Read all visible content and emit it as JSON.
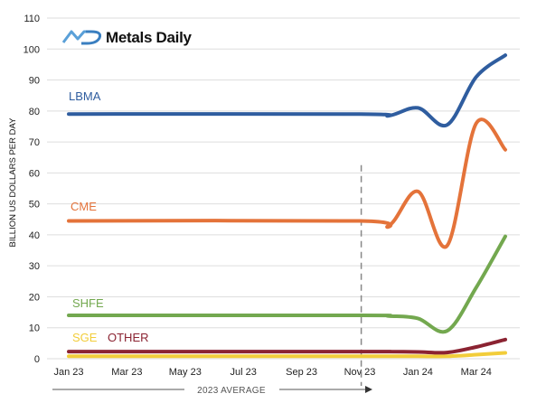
{
  "logo": {
    "mark": "MD",
    "name": "Metals Daily"
  },
  "chart_data": {
    "type": "line",
    "title": "",
    "xlabel": "",
    "ylabel": "BILLION US DOLLARS PER DAY",
    "ylim": [
      0,
      110
    ],
    "yticks": [
      0,
      10,
      20,
      30,
      40,
      50,
      60,
      70,
      80,
      90,
      100,
      110
    ],
    "x_tick_labels": [
      "Jan 23",
      "Mar 23",
      "May 23",
      "Jul 23",
      "Sep 23",
      "Nov 23",
      "Jan 24",
      "Mar 24"
    ],
    "x_month_index": [
      0,
      2,
      4,
      6,
      8,
      10,
      12,
      14
    ],
    "grid": true,
    "reference_line": {
      "x_month_index": 10.05,
      "style": "dashed"
    },
    "bracket": {
      "label": "2023 AVERAGE",
      "from_month_index": 0,
      "to_month_index": 11
    },
    "x": [
      0,
      10,
      11,
      12,
      13,
      14,
      15
    ],
    "series": [
      {
        "name": "LBMA",
        "color": "#2f5d9f",
        "values": [
          79,
          79,
          78.5,
          81,
          75.5,
          91,
          98
        ]
      },
      {
        "name": "CME",
        "color": "#e4733a",
        "values": [
          44.5,
          44.5,
          43,
          54,
          36.5,
          76,
          67.5
        ]
      },
      {
        "name": "SHFE",
        "color": "#73a84f",
        "values": [
          14,
          14,
          13.8,
          13,
          9,
          23,
          39.5
        ]
      },
      {
        "name": "OTHER",
        "color": "#8b2332",
        "values": [
          2.3,
          2.3,
          2.3,
          2.2,
          2.0,
          3.8,
          6.2
        ]
      },
      {
        "name": "SGE",
        "color": "#f2cd3a",
        "values": [
          0.8,
          0.8,
          0.8,
          0.8,
          0.8,
          1.3,
          1.9
        ]
      }
    ]
  }
}
